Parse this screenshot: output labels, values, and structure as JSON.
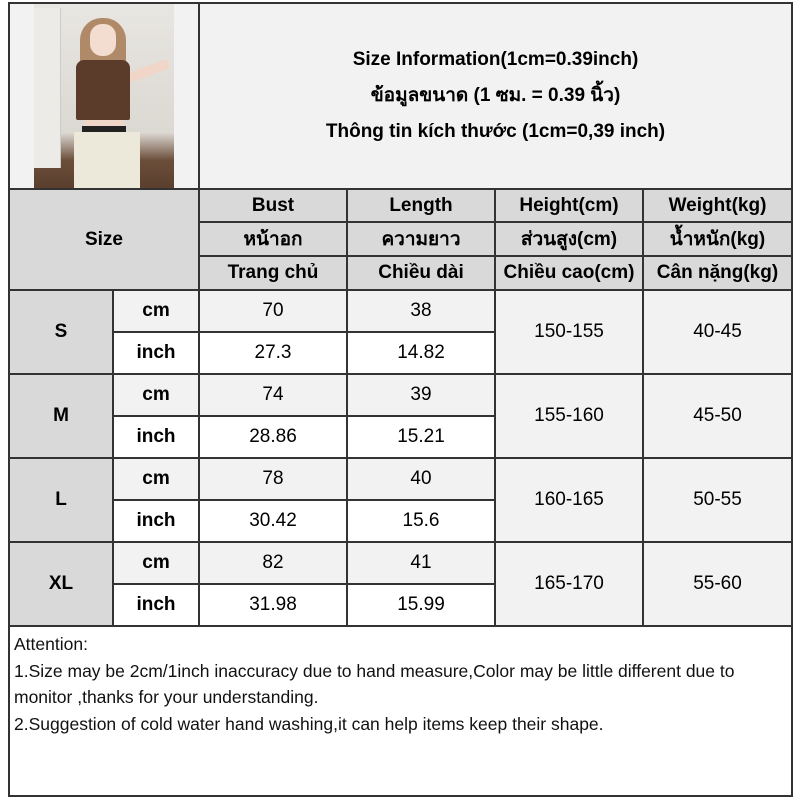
{
  "title_lines": [
    "Size Information(1cm=0.39inch)",
    "ข้อมูลขนาด (1 ซม. = 0.39 นิ้ว)",
    "Thông tin kích thước (1cm=0,39 inch)"
  ],
  "size_label": "Size",
  "columns": [
    {
      "en": "Bust",
      "th": "หน้าอก",
      "vi": "Trang chủ"
    },
    {
      "en": "Length",
      "th": "ความยาว",
      "vi": "Chiều dài"
    },
    {
      "en": "Height(cm)",
      "th": "ส่วนสูง(cm)",
      "vi": "Chiều cao(cm)"
    },
    {
      "en": "Weight(kg)",
      "th": "น้ำหนัก(kg)",
      "vi": "Cân nặng(kg)"
    }
  ],
  "units": {
    "cm": "cm",
    "inch": "inch"
  },
  "rows": [
    {
      "size": "S",
      "cm": {
        "bust": "70",
        "length": "38"
      },
      "inch": {
        "bust": "27.3",
        "length": "14.82"
      },
      "height": "150-155",
      "weight": "40-45"
    },
    {
      "size": "M",
      "cm": {
        "bust": "74",
        "length": "39"
      },
      "inch": {
        "bust": "28.86",
        "length": "15.21"
      },
      "height": "155-160",
      "weight": "45-50"
    },
    {
      "size": "L",
      "cm": {
        "bust": "78",
        "length": "40"
      },
      "inch": {
        "bust": "30.42",
        "length": "15.6"
      },
      "height": "160-165",
      "weight": "50-55"
    },
    {
      "size": "XL",
      "cm": {
        "bust": "82",
        "length": "41"
      },
      "inch": {
        "bust": "31.98",
        "length": "15.99"
      },
      "height": "165-170",
      "weight": "55-60"
    }
  ],
  "notes": {
    "heading": "Attention:",
    "line1": "1.Size may be 2cm/1inch inaccuracy due to hand measure,Color may be little different due to monitor ,thanks for your understanding.",
    "line2": "2.Suggestion of cold water hand washing,it can help items keep their shape."
  }
}
